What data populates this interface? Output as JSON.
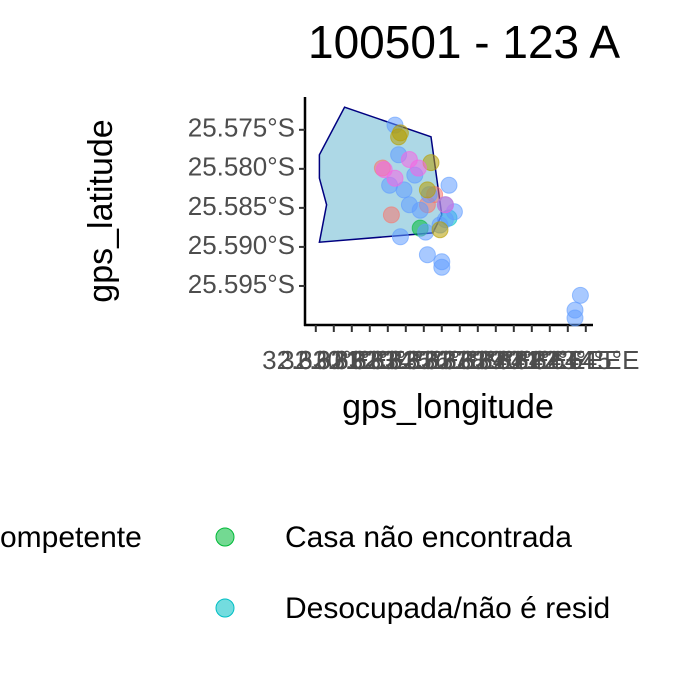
{
  "chart_data": {
    "type": "scatter",
    "title": "100501 - 123 A",
    "x_label": "gps_longitude",
    "y_label": "gps_latitude",
    "xlim": [
      32.6294,
      32.6454
    ],
    "ylim": [
      -25.6,
      -25.5708
    ],
    "xticks": [
      {
        "value": 32.63,
        "label": "32.630°E"
      },
      {
        "value": 32.631,
        "label": "32.631°E"
      },
      {
        "value": 32.632,
        "label": "32.632°E"
      },
      {
        "value": 32.633,
        "label": "32.633°E"
      },
      {
        "value": 32.634,
        "label": "32.634°E"
      },
      {
        "value": 32.635,
        "label": "32.635°E"
      },
      {
        "value": 32.636,
        "label": "32.636°E"
      },
      {
        "value": 32.637,
        "label": "32.637°E"
      },
      {
        "value": 32.638,
        "label": "32.638°E"
      },
      {
        "value": 32.639,
        "label": "32.639°E"
      },
      {
        "value": 32.64,
        "label": "32.640°E"
      },
      {
        "value": 32.641,
        "label": "32.641°E"
      },
      {
        "value": 32.642,
        "label": "32.642°E"
      },
      {
        "value": 32.643,
        "label": "32.643°E"
      },
      {
        "value": 32.644,
        "label": "32.644°E"
      },
      {
        "value": 32.645,
        "label": "32.645°E"
      }
    ],
    "yticks": [
      {
        "value": -25.575,
        "label": "25.575°S"
      },
      {
        "value": -25.58,
        "label": "25.580°S"
      },
      {
        "value": -25.585,
        "label": "25.585°S"
      },
      {
        "value": -25.59,
        "label": "25.590°S"
      },
      {
        "value": -25.595,
        "label": "25.595°S"
      }
    ],
    "boundary": {
      "fill": "#add8e6",
      "stroke": "#000080",
      "x": [
        32.6316,
        32.6364,
        32.637,
        32.6365,
        32.6302,
        32.6306,
        32.6302,
        32.6302
      ],
      "y": [
        -25.5721,
        -25.5759,
        -25.5859,
        -25.5882,
        -25.5894,
        -25.5846,
        -25.5812,
        -25.5782
      ]
    },
    "series": [
      {
        "name": "ompetente",
        "color": "#F8766D",
        "x": [
          32.6337,
          32.6342,
          32.6362,
          32.6366
        ],
        "values": [
          -25.5799,
          -25.5859,
          -25.5846,
          -25.5833
        ]
      },
      {
        "name": "Casa não encontrada",
        "color": "#00BA38",
        "x": [
          32.6358
        ],
        "values": [
          -25.5876
        ]
      },
      {
        "name": "Desocupada/não é resid",
        "color": "#00BFC4",
        "x": [
          32.6374,
          32.6372
        ],
        "values": [
          -25.5863,
          -25.5846
        ]
      },
      {
        "color": "#619CFF",
        "x": [
          32.6344,
          32.6346,
          32.6341,
          32.6349,
          32.6352,
          32.6358,
          32.6363,
          32.6374,
          32.6377,
          32.6369,
          32.6361,
          32.6347,
          32.6362,
          32.637,
          32.637,
          32.6444,
          32.6444,
          32.6447,
          32.6372,
          32.6355
        ],
        "values": [
          -25.5744,
          -25.5782,
          -25.5821,
          -25.5827,
          -25.5846,
          -25.5853,
          -25.5833,
          -25.5821,
          -25.5855,
          -25.5872,
          -25.5881,
          -25.5887,
          -25.591,
          -25.5919,
          -25.5926,
          -25.5981,
          -25.5991,
          -25.5962,
          -25.5865,
          -25.5808
        ]
      },
      {
        "color": "#B79F00",
        "x": [
          32.6347,
          32.6346,
          32.6364,
          32.6369,
          32.6362
        ],
        "values": [
          -25.5754,
          -25.5759,
          -25.5792,
          -25.5878,
          -25.5827
        ]
      },
      {
        "color": "#F564E3",
        "x": [
          32.6338,
          32.6344,
          32.6352,
          32.6357,
          32.6372
        ],
        "values": [
          -25.5801,
          -25.5812,
          -25.5788,
          -25.5799,
          -25.5846
        ]
      }
    ]
  }
}
